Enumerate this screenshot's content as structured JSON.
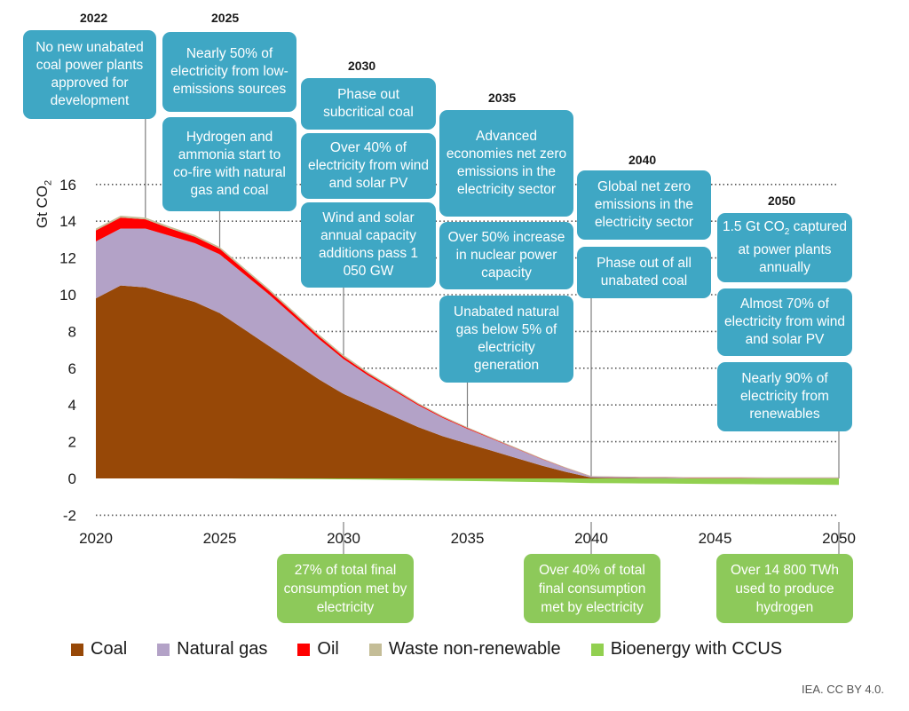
{
  "colors": {
    "coal": "#974807",
    "gas": "#b3a2c7",
    "oil": "#ff0000",
    "waste": "#c4bd97",
    "bio": "#92d050",
    "milestone_box": "#3fa7c4",
    "electrification_box": "#8dc95a"
  },
  "chart_data": {
    "type": "area",
    "x": [
      2020,
      2021,
      2022,
      2023,
      2024,
      2025,
      2026,
      2027,
      2028,
      2029,
      2030,
      2031,
      2032,
      2033,
      2034,
      2035,
      2036,
      2037,
      2038,
      2039,
      2040,
      2041,
      2042,
      2043,
      2044,
      2045,
      2046,
      2047,
      2048,
      2049,
      2050
    ],
    "ylabel": "Gt CO2",
    "ylim": [
      -2,
      16
    ],
    "yticks": [
      -2,
      0,
      2,
      4,
      6,
      8,
      10,
      12,
      14,
      16
    ],
    "xticks": [
      2020,
      2025,
      2030,
      2035,
      2040,
      2045,
      2050
    ],
    "grid": true,
    "legend_position": "bottom",
    "series": [
      {
        "name": "Coal",
        "values": [
          9.8,
          10.5,
          10.4,
          10.0,
          9.6,
          9.0,
          8.1,
          7.2,
          6.3,
          5.4,
          4.6,
          4.0,
          3.4,
          2.8,
          2.3,
          1.9,
          1.5,
          1.1,
          0.7,
          0.35,
          0.05,
          0.03,
          0.02,
          0.02,
          0.01,
          0.01,
          0.01,
          0.01,
          0.01,
          0.01,
          0.01
        ]
      },
      {
        "name": "Natural gas",
        "values": [
          3.1,
          3.1,
          3.2,
          3.2,
          3.2,
          3.2,
          3.0,
          2.8,
          2.5,
          2.2,
          1.9,
          1.6,
          1.4,
          1.2,
          1.0,
          0.8,
          0.65,
          0.5,
          0.35,
          0.2,
          0.05,
          0.05,
          0.04,
          0.04,
          0.03,
          0.03,
          0.03,
          0.02,
          0.02,
          0.02,
          0.02
        ]
      },
      {
        "name": "Oil",
        "values": [
          0.6,
          0.6,
          0.5,
          0.4,
          0.35,
          0.3,
          0.25,
          0.2,
          0.18,
          0.15,
          0.12,
          0.1,
          0.08,
          0.06,
          0.05,
          0.04,
          0.03,
          0.02,
          0.02,
          0.01,
          0.01,
          0.01,
          0.01,
          0.01,
          0.01,
          0.01,
          0.01,
          0.01,
          0.01,
          0.01,
          0.01
        ]
      },
      {
        "name": "Waste non-renewable",
        "values": [
          0.1,
          0.1,
          0.1,
          0.1,
          0.1,
          0.1,
          0.1,
          0.1,
          0.1,
          0.1,
          0.1,
          0.08,
          0.07,
          0.06,
          0.05,
          0.05,
          0.04,
          0.04,
          0.03,
          0.03,
          0.02,
          0.02,
          0.02,
          0.02,
          0.02,
          0.02,
          0.02,
          0.02,
          0.02,
          0.02,
          0.02
        ]
      },
      {
        "name": "Bioenergy with CCUS",
        "values": [
          0,
          0,
          0,
          0,
          0,
          0,
          -0.01,
          -0.02,
          -0.03,
          -0.04,
          -0.05,
          -0.06,
          -0.08,
          -0.1,
          -0.12,
          -0.14,
          -0.16,
          -0.18,
          -0.2,
          -0.22,
          -0.25,
          -0.26,
          -0.27,
          -0.28,
          -0.29,
          -0.3,
          -0.31,
          -0.32,
          -0.33,
          -0.34,
          -0.35
        ]
      }
    ]
  },
  "y_axis_title": {
    "main": "Gt CO",
    "sub": "2"
  },
  "milestone_years": [
    "2022",
    "2025",
    "2030",
    "2035",
    "2040",
    "2050"
  ],
  "milestones": {
    "m2022_1": "No new unabated coal power plants approved for development",
    "m2025_1": "Nearly 50% of electricity from low-emissions sources",
    "m2025_2": "Hydrogen and ammonia start to co-fire with natural gas and coal",
    "m2030_1": "Phase out subcritical coal",
    "m2030_2": "Over 40% of electricity from wind and solar PV",
    "m2030_3": "Wind and solar annual capacity additions pass 1 050 GW",
    "m2035_1": "Advanced economies net zero emissions in the electricity sector",
    "m2035_2": "Over 50% increase in nuclear power capacity",
    "m2035_3": "Unabated natural gas below 5% of electricity generation",
    "m2040_1": "Global net zero emissions in the electricity sector",
    "m2040_2": "Phase out of all unabated coal",
    "m2050_1a": "1.5 Gt CO",
    "m2050_1b": "2",
    "m2050_1c": " captured at power plants annually",
    "m2050_2": "Almost 70% of electricity from wind and solar PV",
    "m2050_3": "Nearly 90% of electricity from renewables"
  },
  "electrification": {
    "e2030": "27% of total final consumption met by electricity",
    "e2040": "Over 40% of  total final consumption met by electricity",
    "e2050": "Over 14 800 TWh used to produce hydrogen"
  },
  "legend": [
    "Coal",
    "Natural gas",
    "Oil",
    "Waste non-renewable",
    "Bioenergy with CCUS"
  ],
  "credit": "IEA. CC BY 4.0."
}
